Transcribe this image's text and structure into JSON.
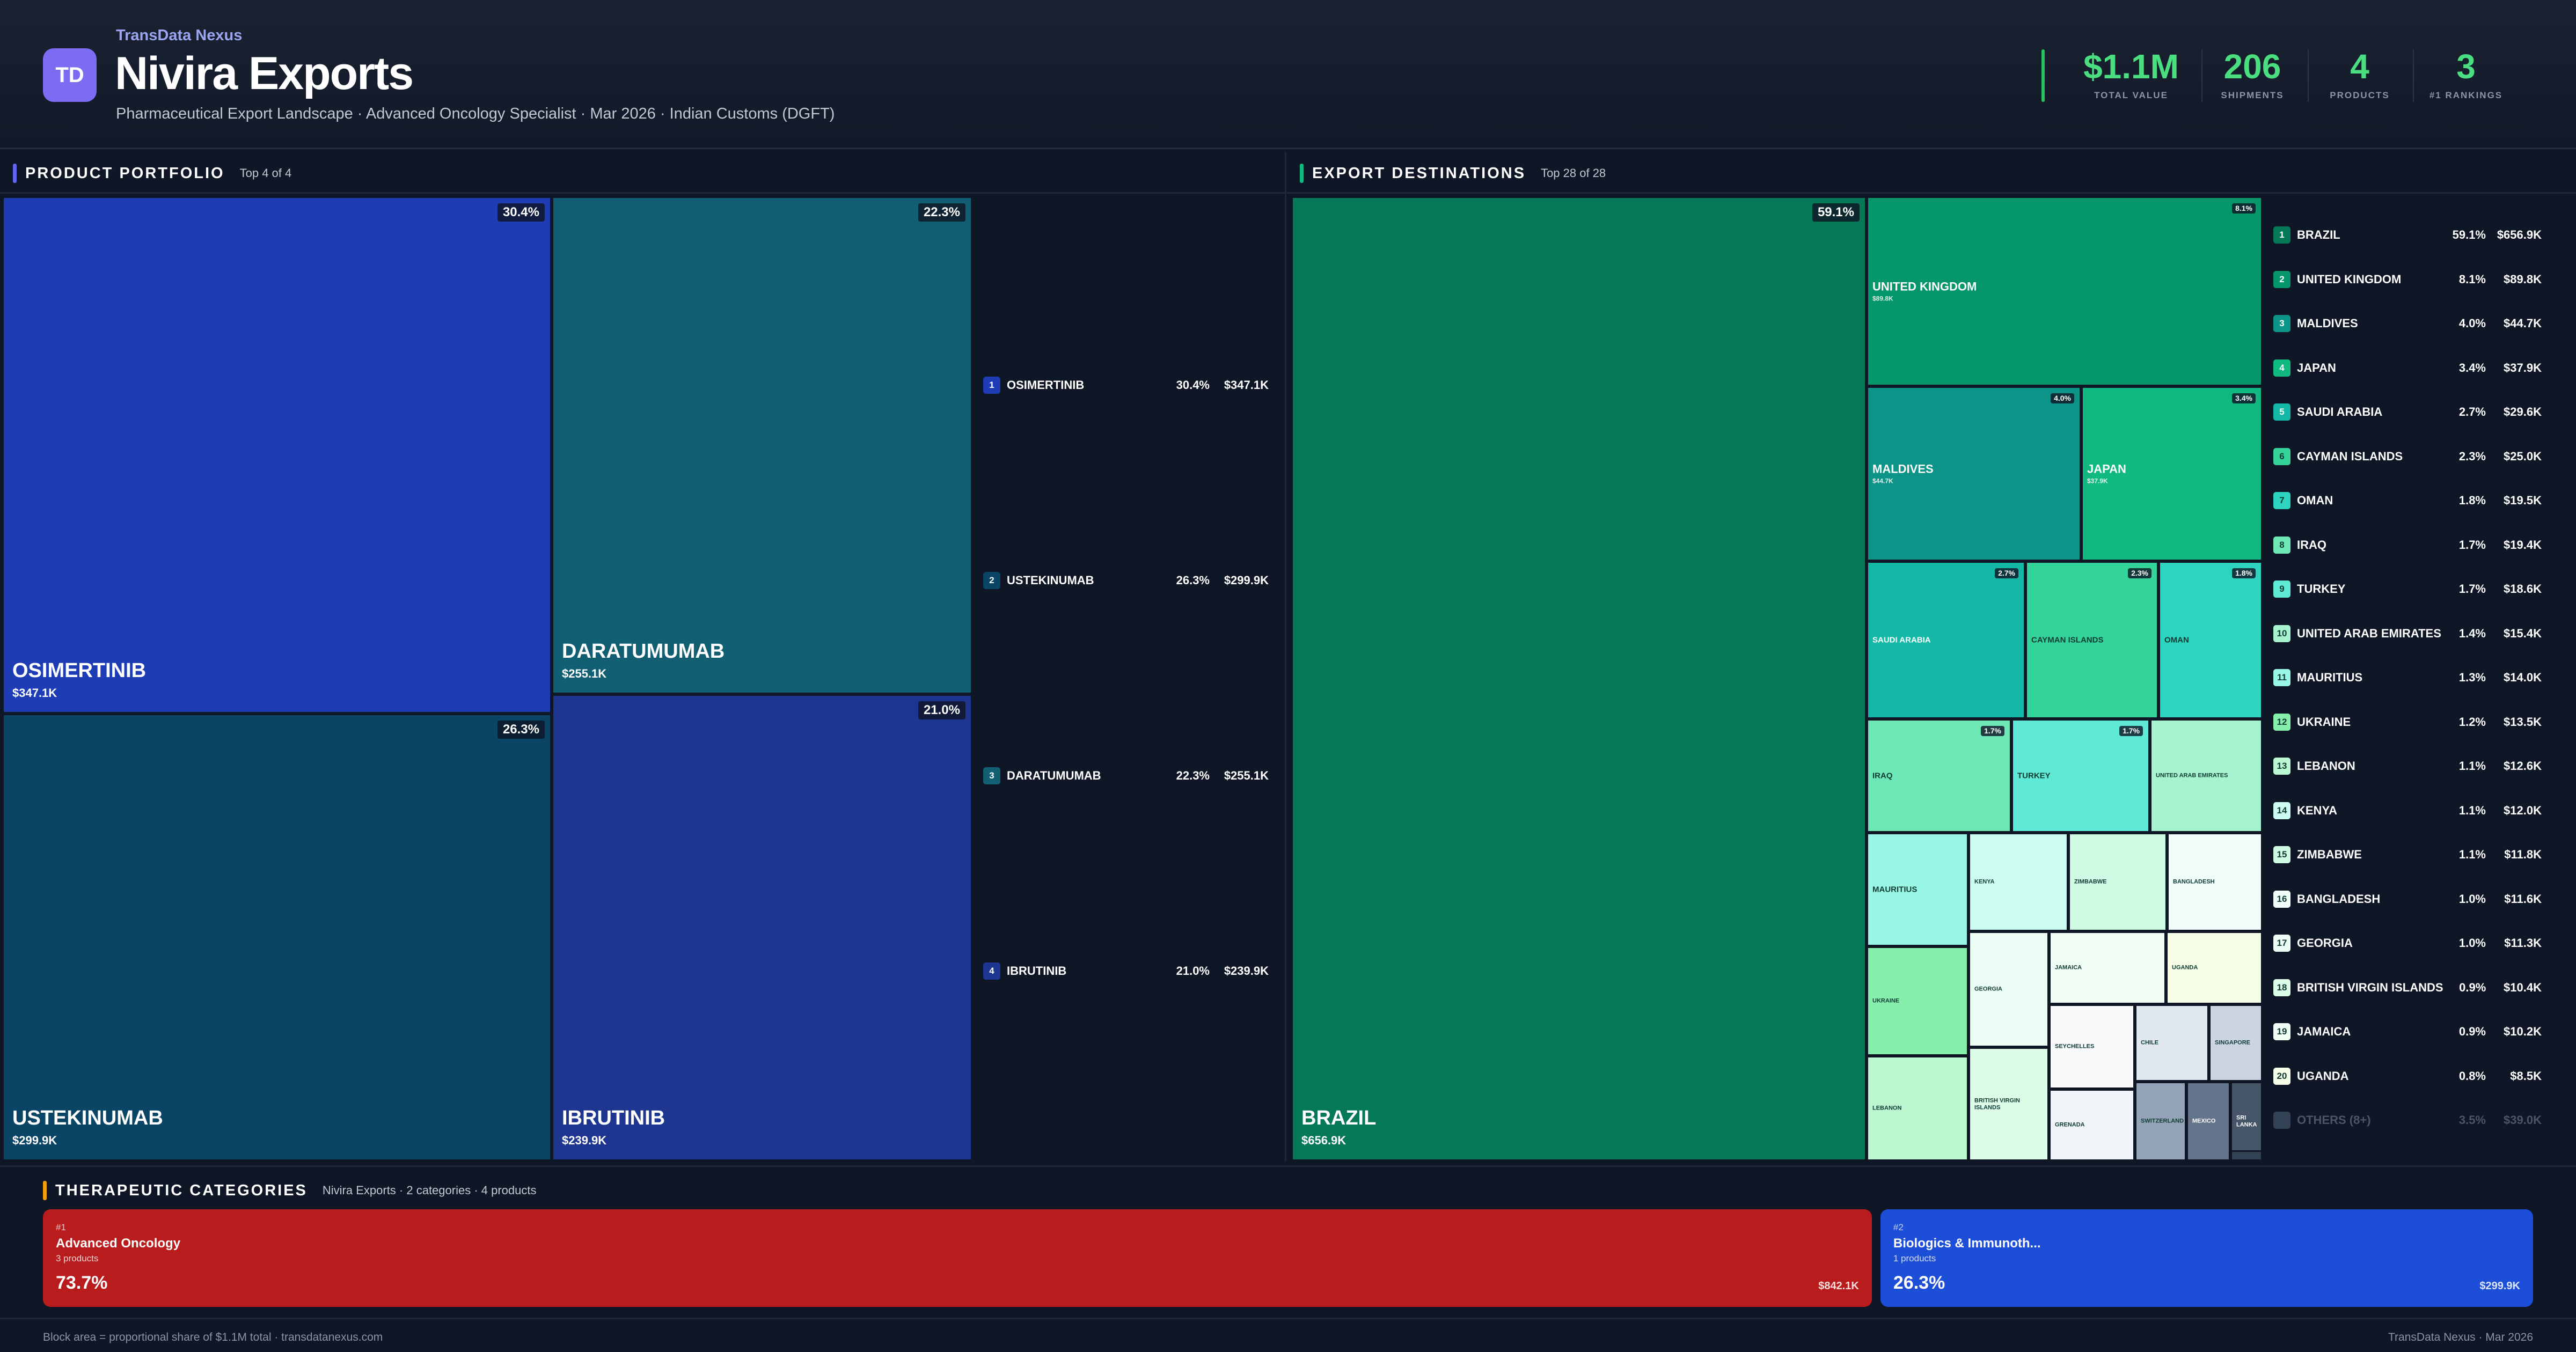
{
  "header": {
    "logo_text": "TD",
    "brand": "TransData Nexus",
    "title": "Nivira Exports",
    "subtitle": "Pharmaceutical Export Landscape · Advanced Oncology Specialist · Mar 2026 · Indian Customs (DGFT)"
  },
  "kpis": [
    {
      "value": "$1.1M",
      "label": "TOTAL VALUE"
    },
    {
      "value": "206",
      "label": "SHIPMENTS"
    },
    {
      "value": "4",
      "label": "PRODUCTS"
    },
    {
      "value": "3",
      "label": "#1 RANKINGS"
    }
  ],
  "product_panel": {
    "title": "PRODUCT PORTFOLIO",
    "subtitle": "Top 4 of 4"
  },
  "destination_panel": {
    "title": "EXPORT DESTINATIONS",
    "subtitle": "Top 28 of 28"
  },
  "chart_data": [
    {
      "type": "treemap",
      "name": "PRODUCT PORTFOLIO",
      "items": [
        {
          "label": "OSIMERTINIB",
          "value": 347.1,
          "value_label": "$347.1K",
          "pct_label": "30.4%",
          "color": "#1e3db5"
        },
        {
          "label": "USTEKINUMAB",
          "value": 299.9,
          "value_label": "$299.9K",
          "pct_label": "26.3%",
          "color": "#0b4566"
        },
        {
          "label": "DARATUMUMAB",
          "value": 255.1,
          "value_label": "$255.1K",
          "pct_label": "22.3%",
          "color": "#125e72"
        },
        {
          "label": "IBRUTINIB",
          "value": 239.9,
          "value_label": "$239.9K",
          "pct_label": "21.0%",
          "color": "#1f3690"
        }
      ],
      "legend": [
        {
          "rank": "1",
          "label": "OSIMERTINIB",
          "pct": "30.4%",
          "value": "$347.1K",
          "color": "#1e3db5"
        },
        {
          "rank": "2",
          "label": "USTEKINUMAB",
          "pct": "26.3%",
          "value": "$299.9K",
          "color": "#0b4566"
        },
        {
          "rank": "3",
          "label": "DARATUMUMAB",
          "pct": "22.3%",
          "value": "$255.1K",
          "color": "#125e72"
        },
        {
          "rank": "4",
          "label": "IBRUTINIB",
          "pct": "21.0%",
          "value": "$239.9K",
          "color": "#1f3690"
        }
      ]
    },
    {
      "type": "treemap",
      "name": "EXPORT DESTINATIONS",
      "items": [
        {
          "label": "BRAZIL",
          "value": 656.9,
          "value_label": "$656.9K",
          "pct_label": "59.1%",
          "color": "#047857"
        },
        {
          "label": "UNITED KINGDOM",
          "value": 89.8,
          "value_label": "$89.8K",
          "pct_label": "8.1%",
          "color": "#059669"
        },
        {
          "label": "MALDIVES",
          "value": 44.7,
          "value_label": "$44.7K",
          "pct_label": "4.0%",
          "color": "#0d9488"
        },
        {
          "label": "JAPAN",
          "value": 37.9,
          "value_label": "$37.9K",
          "pct_label": "3.4%",
          "color": "#10b981"
        },
        {
          "label": "SAUDI ARABIA",
          "value": 29.6,
          "pct_label": "2.7%",
          "color": "#14b8a6"
        },
        {
          "label": "CAYMAN ISLANDS",
          "value": 25.0,
          "pct_label": "2.3%",
          "color": "#34d399"
        },
        {
          "label": "OMAN",
          "value": 19.5,
          "pct_label": "1.8%",
          "color": "#2dd4bf"
        },
        {
          "label": "IRAQ",
          "value": 19.4,
          "pct_label": "1.7%",
          "color": "#6ee7b7"
        },
        {
          "label": "TURKEY",
          "value": 18.6,
          "pct_label": "1.7%",
          "color": "#5eead4"
        },
        {
          "label": "UNITED ARAB EMIRATES",
          "value": 15.4,
          "color": "#a7f3d0"
        },
        {
          "label": "MAURITIUS",
          "value": 14.0,
          "color": "#99f6e4"
        },
        {
          "label": "KENYA",
          "value": 12.0,
          "color": "#ccfbf1"
        },
        {
          "label": "ZIMBABWE",
          "value": 11.8,
          "color": "#d1fae5"
        },
        {
          "label": "BANGLADESH",
          "value": 11.6,
          "color": "#f0fdfa"
        },
        {
          "label": "UKRAINE",
          "value": 13.5,
          "color": "#86efac"
        },
        {
          "label": "GEORGIA",
          "value": 11.3,
          "color": "#ecfdf5"
        },
        {
          "label": "JAMAICA",
          "value": 10.2,
          "color": "#f0fdf4"
        },
        {
          "label": "UGANDA",
          "value": 8.5,
          "color": "#f7fee7"
        },
        {
          "label": "LEBANON",
          "value": 12.6,
          "color": "#bbf7d0"
        },
        {
          "label": "BRITISH VIRGIN ISLANDS",
          "value": 10.4,
          "color": "#dcfce7"
        },
        {
          "label": "SEYCHELLES",
          "color": "#f8fafc"
        },
        {
          "label": "CHILE",
          "color": "#e2e8f0"
        },
        {
          "label": "SINGAPORE",
          "color": "#cbd5e1"
        },
        {
          "label": "GRENADA",
          "color": "#f1f5f9"
        },
        {
          "label": "SWITZERLAND",
          "color": "#94a3b8"
        },
        {
          "label": "MEXICO",
          "color": "#64748b"
        },
        {
          "label": "SRI LANKA",
          "color": "#475569"
        },
        {
          "label": "",
          "color": "#334155"
        }
      ],
      "legend": [
        {
          "rank": "1",
          "label": "BRAZIL",
          "pct": "59.1%",
          "value": "$656.9K",
          "color": "#047857"
        },
        {
          "rank": "2",
          "label": "UNITED KINGDOM",
          "pct": "8.1%",
          "value": "$89.8K",
          "color": "#059669"
        },
        {
          "rank": "3",
          "label": "MALDIVES",
          "pct": "4.0%",
          "value": "$44.7K",
          "color": "#0d9488"
        },
        {
          "rank": "4",
          "label": "JAPAN",
          "pct": "3.4%",
          "value": "$37.9K",
          "color": "#10b981"
        },
        {
          "rank": "5",
          "label": "SAUDI ARABIA",
          "pct": "2.7%",
          "value": "$29.6K",
          "color": "#14b8a6"
        },
        {
          "rank": "6",
          "label": "CAYMAN ISLANDS",
          "pct": "2.3%",
          "value": "$25.0K",
          "color": "#34d399"
        },
        {
          "rank": "7",
          "label": "OMAN",
          "pct": "1.8%",
          "value": "$19.5K",
          "color": "#2dd4bf"
        },
        {
          "rank": "8",
          "label": "IRAQ",
          "pct": "1.7%",
          "value": "$19.4K",
          "color": "#6ee7b7"
        },
        {
          "rank": "9",
          "label": "TURKEY",
          "pct": "1.7%",
          "value": "$18.6K",
          "color": "#5eead4"
        },
        {
          "rank": "10",
          "label": "UNITED ARAB EMIRATES",
          "pct": "1.4%",
          "value": "$15.4K",
          "color": "#a7f3d0"
        },
        {
          "rank": "11",
          "label": "MAURITIUS",
          "pct": "1.3%",
          "value": "$14.0K",
          "color": "#99f6e4"
        },
        {
          "rank": "12",
          "label": "UKRAINE",
          "pct": "1.2%",
          "value": "$13.5K",
          "color": "#86efac"
        },
        {
          "rank": "13",
          "label": "LEBANON",
          "pct": "1.1%",
          "value": "$12.6K",
          "color": "#bbf7d0"
        },
        {
          "rank": "14",
          "label": "KENYA",
          "pct": "1.1%",
          "value": "$12.0K",
          "color": "#ccfbf1"
        },
        {
          "rank": "15",
          "label": "ZIMBABWE",
          "pct": "1.1%",
          "value": "$11.8K",
          "color": "#d1fae5"
        },
        {
          "rank": "16",
          "label": "BANGLADESH",
          "pct": "1.0%",
          "value": "$11.6K",
          "color": "#f0fdfa"
        },
        {
          "rank": "17",
          "label": "GEORGIA",
          "pct": "1.0%",
          "value": "$11.3K",
          "color": "#ecfdf5"
        },
        {
          "rank": "18",
          "label": "BRITISH VIRGIN ISLANDS",
          "pct": "0.9%",
          "value": "$10.4K",
          "color": "#dcfce7"
        },
        {
          "rank": "19",
          "label": "JAMAICA",
          "pct": "0.9%",
          "value": "$10.2K",
          "color": "#f0fdf4"
        },
        {
          "rank": "20",
          "label": "UGANDA",
          "pct": "0.8%",
          "value": "$8.5K",
          "color": "#f7fee7"
        },
        {
          "rank": "",
          "label": "OTHERS (8+)",
          "pct": "3.5%",
          "value": "$39.0K",
          "color": "#334155",
          "muted": true
        }
      ]
    }
  ],
  "therapy": {
    "title": "THERAPEUTIC CATEGORIES",
    "subtitle": "Nivira Exports · 2 categories · 4 products",
    "categories": [
      {
        "rank": "#1",
        "name": "Advanced Oncology",
        "count": "3 products",
        "pct": "73.7%",
        "value": "$842.1K",
        "share": 73.7,
        "color": "#b91c1c"
      },
      {
        "rank": "#2",
        "name": "Biologics & Immunoth...",
        "count": "1 products",
        "pct": "26.3%",
        "value": "$299.9K",
        "share": 26.3,
        "color": "#1d4ed8"
      }
    ]
  },
  "footer": {
    "left": "Block area = proportional share of $1.1M total · transdatanexus.com",
    "right": "TransData Nexus · Mar 2026"
  }
}
